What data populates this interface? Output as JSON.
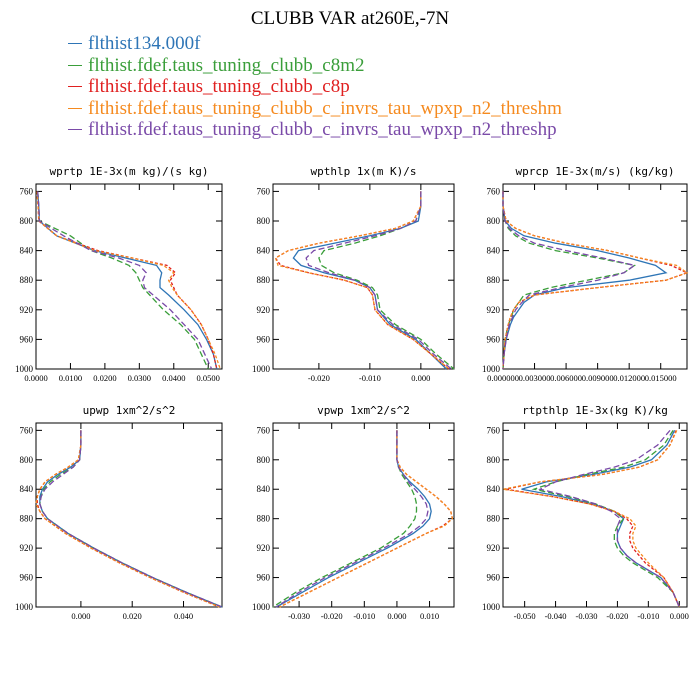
{
  "title": "CLUBB VAR at260E,-7N",
  "legend": [
    {
      "label": "flthist134.000f",
      "color": "#2e75b6"
    },
    {
      "label": "flthist.fdef.taus_tuning_clubb_c8m2",
      "color": "#3a9e3a"
    },
    {
      "label": "flthist.fdef.taus_tuning_clubb_c8p",
      "color": "#e02020"
    },
    {
      "label": "flthist.fdef.taus_tuning_clubb_c_invrs_tau_wpxp_n2_threshm",
      "color": "#f58a1f"
    },
    {
      "label": "flthist.fdef.taus_tuning_clubb_c_invrs_tau_wpxp_n2_threshp",
      "color": "#7a4aa8"
    }
  ],
  "chart_data": [
    {
      "type": "line",
      "title": "wprtp  1E-3x(m kg)/(s kg)",
      "xlim": [
        0,
        0.054
      ],
      "ylim": [
        1000,
        750
      ],
      "xticks": [
        0,
        0.01,
        0.02,
        0.03,
        0.04,
        0.05
      ],
      "xtick_labels": [
        "0.0000",
        "0.0100",
        "0.0200",
        "0.0300",
        "0.0400",
        "0.0500"
      ],
      "yticks": [
        760,
        800,
        840,
        880,
        920,
        960,
        1000
      ],
      "y": [
        760,
        780,
        800,
        820,
        840,
        850,
        860,
        870,
        880,
        890,
        900,
        920,
        940,
        960,
        980,
        1000
      ],
      "series": [
        {
          "values": [
            0.0005,
            0.0008,
            0.001,
            0.006,
            0.017,
            0.026,
            0.035,
            0.0365,
            0.036,
            0.036,
            0.0385,
            0.043,
            0.047,
            0.0495,
            0.0515,
            0.0525
          ]
        },
        {
          "values": [
            0.0005,
            0.0008,
            0.001,
            0.01,
            0.016,
            0.022,
            0.027,
            0.029,
            0.03,
            0.031,
            0.033,
            0.037,
            0.042,
            0.046,
            0.048,
            0.05
          ]
        },
        {
          "values": [
            0.0003,
            0.0006,
            0.0008,
            0.006,
            0.018,
            0.028,
            0.038,
            0.0405,
            0.039,
            0.04,
            0.041,
            0.045,
            0.048,
            0.05,
            0.0515,
            0.0525
          ]
        },
        {
          "values": [
            0.0003,
            0.0006,
            0.0009,
            0.006,
            0.017,
            0.028,
            0.037,
            0.04,
            0.0385,
            0.0395,
            0.041,
            0.045,
            0.048,
            0.05,
            0.052,
            0.0535
          ]
        },
        {
          "values": [
            0.0005,
            0.0008,
            0.001,
            0.008,
            0.016,
            0.024,
            0.03,
            0.032,
            0.031,
            0.0315,
            0.034,
            0.039,
            0.043,
            0.047,
            0.049,
            0.051
          ]
        }
      ]
    },
    {
      "type": "line",
      "title": "wpthlp  1x(m K)/s",
      "xlim": [
        -0.029,
        0.0065
      ],
      "ylim": [
        1000,
        750
      ],
      "xticks": [
        -0.02,
        -0.01,
        0.0
      ],
      "xtick_labels": [
        "-0.020",
        "-0.010",
        "0.000"
      ],
      "yticks": [
        760,
        800,
        840,
        880,
        920,
        960,
        1000
      ],
      "y": [
        760,
        780,
        800,
        810,
        820,
        830,
        840,
        850,
        860,
        870,
        880,
        890,
        900,
        920,
        940,
        960,
        980,
        1000
      ],
      "series": [
        {
          "values": [
            0.0,
            0.0,
            -0.0005,
            -0.004,
            -0.01,
            -0.017,
            -0.024,
            -0.025,
            -0.0235,
            -0.019,
            -0.013,
            -0.01,
            -0.009,
            -0.0085,
            -0.006,
            -0.001,
            0.002,
            0.005
          ]
        },
        {
          "values": [
            0.0,
            0.0,
            -0.001,
            -0.004,
            -0.008,
            -0.013,
            -0.019,
            -0.02,
            -0.0195,
            -0.017,
            -0.0125,
            -0.0095,
            -0.0085,
            -0.008,
            -0.005,
            0.0,
            0.003,
            0.0065
          ]
        },
        {
          "values": [
            0.0,
            0.0,
            -0.0015,
            -0.005,
            -0.012,
            -0.02,
            -0.026,
            -0.0285,
            -0.0275,
            -0.022,
            -0.015,
            -0.0105,
            -0.0095,
            -0.009,
            -0.0065,
            -0.0015,
            0.002,
            0.0055
          ]
        },
        {
          "values": [
            0.0,
            0.0,
            -0.0015,
            -0.005,
            -0.012,
            -0.02,
            -0.026,
            -0.0285,
            -0.028,
            -0.022,
            -0.015,
            -0.0105,
            -0.0095,
            -0.009,
            -0.0065,
            -0.0015,
            0.002,
            0.0055
          ]
        },
        {
          "values": [
            0.0,
            0.0,
            -0.001,
            -0.004,
            -0.009,
            -0.015,
            -0.021,
            -0.0225,
            -0.022,
            -0.018,
            -0.013,
            -0.01,
            -0.009,
            -0.0085,
            -0.0055,
            -0.0005,
            0.0025,
            0.006
          ]
        }
      ]
    },
    {
      "type": "line",
      "title": "wprcp  1E-3x(m/s) (kg/kg)",
      "xlim": [
        0,
        0.0175
      ],
      "ylim": [
        1000,
        750
      ],
      "xticks": [
        0,
        0.003,
        0.006,
        0.009,
        0.012,
        0.015
      ],
      "xtick_labels": [
        "0.000000",
        "0.003000",
        "0.006000",
        "0.009000",
        "0.012000",
        "0.015000"
      ],
      "yticks": [
        760,
        800,
        840,
        880,
        920,
        960,
        1000
      ],
      "y": [
        760,
        780,
        800,
        810,
        820,
        830,
        840,
        850,
        860,
        870,
        880,
        890,
        900,
        910,
        920,
        930,
        940,
        960,
        980,
        1000
      ],
      "series": [
        {
          "values": [
            0,
            0,
            0.0002,
            0.0008,
            0.002,
            0.005,
            0.009,
            0.012,
            0.0145,
            0.0155,
            0.012,
            0.006,
            0.003,
            0.002,
            0.0015,
            0.001,
            0.0007,
            0.0003,
            0.0001,
            0
          ]
        },
        {
          "values": [
            0,
            0,
            0.0002,
            0.0005,
            0.0012,
            0.0025,
            0.005,
            0.009,
            0.0125,
            0.0115,
            0.008,
            0.0045,
            0.002,
            0.0015,
            0.001,
            0.0008,
            0.0005,
            0.0002,
            0.0001,
            0
          ]
        },
        {
          "values": [
            0,
            0,
            0.0003,
            0.0012,
            0.003,
            0.006,
            0.01,
            0.013,
            0.016,
            0.0175,
            0.0155,
            0.009,
            0.003,
            0.0015,
            0.001,
            0.0007,
            0.0005,
            0.0002,
            0.0001,
            0
          ]
        },
        {
          "values": [
            0,
            0,
            0.0003,
            0.0012,
            0.003,
            0.006,
            0.01,
            0.013,
            0.0165,
            0.0175,
            0.0155,
            0.009,
            0.003,
            0.0015,
            0.001,
            0.0007,
            0.0005,
            0.0002,
            0.0001,
            0
          ]
        },
        {
          "values": [
            0,
            0,
            0.0002,
            0.0006,
            0.0015,
            0.003,
            0.006,
            0.0095,
            0.0125,
            0.0115,
            0.009,
            0.0055,
            0.0025,
            0.0018,
            0.0012,
            0.0009,
            0.0006,
            0.0003,
            0.0001,
            0
          ]
        }
      ]
    },
    {
      "type": "line",
      "title": "upwp  1xm^2/s^2",
      "xlim": [
        -0.0175,
        0.055
      ],
      "ylim": [
        1000,
        750
      ],
      "xticks": [
        0,
        0.02,
        0.04
      ],
      "xtick_labels": [
        "0.000",
        "0.020",
        "0.040"
      ],
      "yticks": [
        760,
        800,
        840,
        880,
        920,
        960,
        1000
      ],
      "y": [
        760,
        780,
        800,
        810,
        820,
        830,
        840,
        850,
        860,
        870,
        880,
        900,
        920,
        940,
        960,
        980,
        1000
      ],
      "series": [
        {
          "values": [
            0,
            0,
            -0.0005,
            -0.004,
            -0.009,
            -0.013,
            -0.015,
            -0.016,
            -0.016,
            -0.015,
            -0.013,
            -0.005,
            0.005,
            0.016,
            0.028,
            0.041,
            0.055
          ]
        },
        {
          "values": [
            0,
            0,
            -0.0005,
            -0.003,
            -0.008,
            -0.012,
            -0.0145,
            -0.0155,
            -0.016,
            -0.015,
            -0.013,
            -0.005,
            0.005,
            0.016,
            0.028,
            0.041,
            0.055
          ]
        },
        {
          "values": [
            0,
            0,
            -0.001,
            -0.005,
            -0.01,
            -0.014,
            -0.016,
            -0.017,
            -0.017,
            -0.016,
            -0.014,
            -0.006,
            0.004,
            0.015,
            0.027,
            0.04,
            0.054
          ]
        },
        {
          "values": [
            0,
            0,
            -0.001,
            -0.005,
            -0.01,
            -0.014,
            -0.016,
            -0.017,
            -0.0175,
            -0.016,
            -0.014,
            -0.006,
            0.004,
            0.015,
            0.027,
            0.04,
            0.054
          ]
        },
        {
          "values": [
            0,
            0,
            -0.0005,
            -0.003,
            -0.007,
            -0.011,
            -0.014,
            -0.0155,
            -0.016,
            -0.015,
            -0.013,
            -0.005,
            0.005,
            0.016,
            0.028,
            0.041,
            0.055
          ]
        }
      ]
    },
    {
      "type": "line",
      "title": "vpwp  1xm^2/s^2",
      "xlim": [
        -0.038,
        0.0175
      ],
      "ylim": [
        1000,
        750
      ],
      "xticks": [
        -0.03,
        -0.02,
        -0.01,
        0.0,
        0.01
      ],
      "xtick_labels": [
        "-0.030",
        "-0.020",
        "-0.010",
        "0.000",
        "0.010"
      ],
      "yticks": [
        760,
        800,
        840,
        880,
        920,
        960,
        1000
      ],
      "y": [
        760,
        780,
        800,
        810,
        820,
        830,
        840,
        850,
        860,
        870,
        880,
        890,
        900,
        920,
        940,
        960,
        980,
        1000
      ],
      "series": [
        {
          "values": [
            0,
            0,
            0,
            0.0005,
            0.002,
            0.004,
            0.0065,
            0.0085,
            0.01,
            0.0105,
            0.01,
            0.008,
            0.005,
            -0.003,
            -0.012,
            -0.021,
            -0.029,
            -0.037
          ]
        },
        {
          "values": [
            0,
            0,
            0,
            0.0005,
            0.0015,
            0.003,
            0.0045,
            0.0055,
            0.006,
            0.006,
            0.0055,
            0.004,
            0.002,
            -0.005,
            -0.014,
            -0.023,
            -0.031,
            -0.038
          ]
        },
        {
          "values": [
            0,
            0,
            0,
            0.001,
            0.003,
            0.006,
            0.009,
            0.012,
            0.0145,
            0.0165,
            0.017,
            0.014,
            0.009,
            0.0,
            -0.009,
            -0.018,
            -0.027,
            -0.036
          ]
        },
        {
          "values": [
            0,
            0,
            0,
            0.001,
            0.003,
            0.006,
            0.009,
            0.012,
            0.0145,
            0.0165,
            0.017,
            0.0145,
            0.009,
            0.0,
            -0.009,
            -0.018,
            -0.027,
            -0.036
          ]
        },
        {
          "values": [
            0,
            0,
            0,
            0.0005,
            0.002,
            0.0035,
            0.0055,
            0.0075,
            0.009,
            0.0095,
            0.009,
            0.007,
            0.004,
            -0.004,
            -0.013,
            -0.022,
            -0.03,
            -0.037
          ]
        }
      ]
    },
    {
      "type": "line",
      "title": "rtpthlp  1E-3x(kg K)/kg",
      "xlim": [
        -0.057,
        0.0025
      ],
      "ylim": [
        1000,
        750
      ],
      "xticks": [
        -0.05,
        -0.04,
        -0.03,
        -0.02,
        -0.01,
        0.0
      ],
      "xtick_labels": [
        "-0.050",
        "-0.040",
        "-0.030",
        "-0.020",
        "-0.010",
        "0.000"
      ],
      "yticks": [
        760,
        800,
        840,
        880,
        920,
        960,
        1000
      ],
      "y": [
        760,
        780,
        800,
        810,
        820,
        830,
        840,
        850,
        860,
        870,
        880,
        890,
        900,
        910,
        920,
        930,
        940,
        960,
        980,
        1000
      ],
      "series": [
        {
          "values": [
            -0.0015,
            -0.004,
            -0.009,
            -0.016,
            -0.028,
            -0.043,
            -0.051,
            -0.038,
            -0.028,
            -0.021,
            -0.018,
            -0.019,
            -0.02,
            -0.02,
            -0.019,
            -0.017,
            -0.014,
            -0.006,
            -0.002,
            0.0
          ]
        },
        {
          "values": [
            -0.002,
            -0.005,
            -0.011,
            -0.018,
            -0.03,
            -0.04,
            -0.047,
            -0.036,
            -0.027,
            -0.021,
            -0.018,
            -0.02,
            -0.021,
            -0.021,
            -0.02,
            -0.018,
            -0.015,
            -0.007,
            -0.002,
            0.0
          ]
        },
        {
          "values": [
            -0.001,
            -0.003,
            -0.007,
            -0.013,
            -0.025,
            -0.045,
            -0.056,
            -0.041,
            -0.029,
            -0.021,
            -0.017,
            -0.015,
            -0.016,
            -0.016,
            -0.015,
            -0.013,
            -0.011,
            -0.005,
            -0.002,
            0.0
          ]
        },
        {
          "values": [
            -0.0008,
            -0.003,
            -0.007,
            -0.013,
            -0.025,
            -0.045,
            -0.057,
            -0.041,
            -0.029,
            -0.021,
            -0.016,
            -0.014,
            -0.015,
            -0.015,
            -0.014,
            -0.012,
            -0.01,
            -0.005,
            -0.002,
            0.0
          ]
        },
        {
          "values": [
            -0.003,
            -0.007,
            -0.014,
            -0.021,
            -0.031,
            -0.04,
            -0.045,
            -0.035,
            -0.027,
            -0.022,
            -0.019,
            -0.02,
            -0.02,
            -0.02,
            -0.019,
            -0.017,
            -0.014,
            -0.006,
            -0.002,
            0.0
          ]
        }
      ]
    }
  ]
}
